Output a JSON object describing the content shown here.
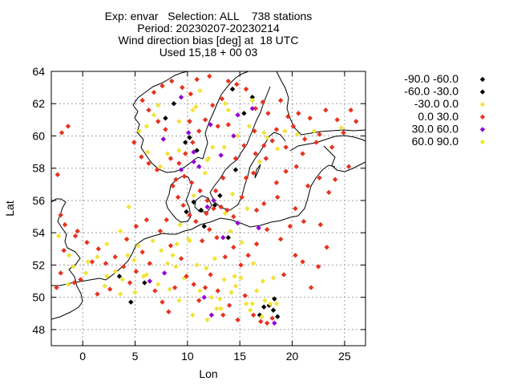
{
  "chart_data": {
    "type": "scatter",
    "title_lines": [
      "Exp: envar   Selection: ALL    738 stations",
      "Period: 20230207-20230214",
      "Wind direction bias [deg] at  18 UTC",
      "Used 15,18 + 00 03"
    ],
    "xlabel": "Lon",
    "ylabel": "Lat",
    "xlim": [
      -3,
      27
    ],
    "ylim": [
      47,
      64
    ],
    "xticks": [
      0,
      5,
      10,
      15,
      20,
      25
    ],
    "yticks": [
      48,
      50,
      52,
      54,
      56,
      58,
      60,
      62,
      64
    ],
    "grid": true,
    "legend_position": "right",
    "series": [
      {
        "name": "-90.0 -60.0",
        "color": "#000000",
        "points": [
          [
            8.7,
            62.0
          ],
          [
            10.2,
            59.9
          ],
          [
            13.1,
            56.3
          ],
          [
            14.6,
            57.9
          ],
          [
            16.2,
            62.4
          ],
          [
            3.5,
            51.3
          ],
          [
            4.6,
            49.7
          ],
          [
            18.2,
            49.2
          ],
          [
            18.6,
            48.8
          ],
          [
            17.3,
            49.4
          ],
          [
            11.3,
            55.4
          ],
          [
            9.8,
            59.6
          ],
          [
            14.3,
            62.9
          ],
          [
            7.9,
            61.1
          ],
          [
            10.6,
            55.9
          ]
        ]
      },
      {
        "name": "-60.0 -30.0",
        "color": "#000000",
        "points": [
          [
            10.9,
            59.1
          ],
          [
            12.6,
            55.7
          ],
          [
            18.3,
            49.9
          ],
          [
            17.8,
            49.5
          ],
          [
            5.9,
            50.9
          ],
          [
            15.4,
            61.4
          ],
          [
            9.9,
            55.3
          ],
          [
            13.9,
            53.7
          ],
          [
            11.6,
            54.4
          ],
          [
            16.9,
            48.9
          ]
        ]
      },
      {
        "name": "-30.0 0.0",
        "color": "#f2e33a",
        "points": [
          [
            -2.3,
            53.8
          ],
          [
            -0.9,
            51.9
          ],
          [
            1.4,
            52.5
          ],
          [
            3.8,
            51.1
          ],
          [
            4.9,
            52.3
          ],
          [
            6.1,
            51.4
          ],
          [
            7.2,
            50.8
          ],
          [
            8.1,
            52.1
          ],
          [
            9.0,
            53.3
          ],
          [
            10.1,
            53.6
          ],
          [
            11.2,
            50.4
          ],
          [
            12.3,
            50.0
          ],
          [
            13.1,
            49.9
          ],
          [
            14.2,
            50.3
          ],
          [
            15.1,
            51.2
          ],
          [
            16.0,
            49.2
          ],
          [
            17.1,
            48.8
          ],
          [
            17.9,
            49.6
          ],
          [
            15.6,
            49.6
          ],
          [
            14.6,
            50.7
          ],
          [
            13.5,
            51.1
          ],
          [
            12.6,
            52.4
          ],
          [
            11.8,
            51.8
          ],
          [
            10.9,
            52.0
          ],
          [
            9.7,
            51.2
          ],
          [
            8.9,
            51.9
          ],
          [
            7.5,
            52.9
          ],
          [
            6.7,
            53.5
          ],
          [
            5.3,
            53.2
          ],
          [
            4.3,
            52.6
          ],
          [
            3.1,
            51.6
          ],
          [
            2.3,
            51.3
          ],
          [
            -1.4,
            50.8
          ],
          [
            0.3,
            51.5
          ],
          [
            2.1,
            50.7
          ],
          [
            9.3,
            54.5
          ],
          [
            10.6,
            56.3
          ],
          [
            11.7,
            57.7
          ],
          [
            12.0,
            58.6
          ],
          [
            13.5,
            59.3
          ],
          [
            14.8,
            60.0
          ],
          [
            15.9,
            60.6
          ],
          [
            17.3,
            60.2
          ],
          [
            18.6,
            59.2
          ],
          [
            19.3,
            60.3
          ],
          [
            20.5,
            60.1
          ],
          [
            22.1,
            60.3
          ],
          [
            24.7,
            60.5
          ],
          [
            9.2,
            60.9
          ],
          [
            10.5,
            61.6
          ],
          [
            11.2,
            62.8
          ],
          [
            13.6,
            62.0
          ],
          [
            16.2,
            62.2
          ],
          [
            8.1,
            58.9
          ],
          [
            7.4,
            58.1
          ],
          [
            6.2,
            59.0
          ],
          [
            5.4,
            60.3
          ],
          [
            6.8,
            61.3
          ],
          [
            14.1,
            54.1
          ],
          [
            15.2,
            53.4
          ],
          [
            16.3,
            52.1
          ],
          [
            18.2,
            51.2
          ],
          [
            14.3,
            56.4
          ],
          [
            16.9,
            58.4
          ],
          [
            17.6,
            59.9
          ],
          [
            12.4,
            59.3
          ],
          [
            3.6,
            54.1
          ],
          [
            2.3,
            53.3
          ],
          [
            4.4,
            55.6
          ],
          [
            5.0,
            50.3
          ],
          [
            -1.3,
            52.6
          ],
          [
            0.5,
            52.2
          ],
          [
            8.3,
            50.5
          ],
          [
            9.2,
            49.8
          ],
          [
            10.5,
            48.9
          ],
          [
            11.9,
            48.6
          ],
          [
            13.2,
            49.3
          ],
          [
            16.6,
            50.4
          ],
          [
            17.2,
            51.0
          ],
          [
            18.5,
            49.6
          ]
        ]
      },
      {
        "name": "0.0 30.0",
        "color": "#e8321e",
        "points": [
          [
            -1.8,
            52.9
          ],
          [
            -0.7,
            53.8
          ],
          [
            0.9,
            52.2
          ],
          [
            1.4,
            50.2
          ],
          [
            2.6,
            50.5
          ],
          [
            3.1,
            52.5
          ],
          [
            3.9,
            51.9
          ],
          [
            4.5,
            50.9
          ],
          [
            5.1,
            51.6
          ],
          [
            5.7,
            52.8
          ],
          [
            6.4,
            52.1
          ],
          [
            6.9,
            50.4
          ],
          [
            7.6,
            49.7
          ],
          [
            8.2,
            49.1
          ],
          [
            8.8,
            50.6
          ],
          [
            9.4,
            52.4
          ],
          [
            9.9,
            51.3
          ],
          [
            10.6,
            50.8
          ],
          [
            11.1,
            49.8
          ],
          [
            11.7,
            50.6
          ],
          [
            12.2,
            51.4
          ],
          [
            12.9,
            50.4
          ],
          [
            13.4,
            48.9
          ],
          [
            14.0,
            49.5
          ],
          [
            14.8,
            48.6
          ],
          [
            15.5,
            50.1
          ],
          [
            16.3,
            48.9
          ],
          [
            17.0,
            48.5
          ],
          [
            17.6,
            48.4
          ],
          [
            18.1,
            48.7
          ],
          [
            19.2,
            51.4
          ],
          [
            20.3,
            52.6
          ],
          [
            21.0,
            52.2
          ],
          [
            21.8,
            50.6
          ],
          [
            22.5,
            51.9
          ],
          [
            23.3,
            53.1
          ],
          [
            22.7,
            54.5
          ],
          [
            21.1,
            54.7
          ],
          [
            20.3,
            55.5
          ],
          [
            21.5,
            56.9
          ],
          [
            22.6,
            57.4
          ],
          [
            23.5,
            56.5
          ],
          [
            24.1,
            57.3
          ],
          [
            25.4,
            58.1
          ],
          [
            23.8,
            59.3
          ],
          [
            22.3,
            59.6
          ],
          [
            21.0,
            58.9
          ],
          [
            20.4,
            58.1
          ],
          [
            19.4,
            57.8
          ],
          [
            18.6,
            56.2
          ],
          [
            19.8,
            54.4
          ],
          [
            18.9,
            53.6
          ],
          [
            17.6,
            54.2
          ],
          [
            16.6,
            53.3
          ],
          [
            15.8,
            52.6
          ],
          [
            15.1,
            52.0
          ],
          [
            14.4,
            53.1
          ],
          [
            13.6,
            52.5
          ],
          [
            12.8,
            53.7
          ],
          [
            12.1,
            54.2
          ],
          [
            11.4,
            53.5
          ],
          [
            10.8,
            54.7
          ],
          [
            10.2,
            55.1
          ],
          [
            9.6,
            55.7
          ],
          [
            9.1,
            56.2
          ],
          [
            8.6,
            56.9
          ],
          [
            8.9,
            57.3
          ],
          [
            9.7,
            57.5
          ],
          [
            10.4,
            57.1
          ],
          [
            11.2,
            56.6
          ],
          [
            11.9,
            56.0
          ],
          [
            12.5,
            55.5
          ],
          [
            13.2,
            55.6
          ],
          [
            13.8,
            55.4
          ],
          [
            14.4,
            55.0
          ],
          [
            15.2,
            56.2
          ],
          [
            15.6,
            57.4
          ],
          [
            16.3,
            57.7
          ],
          [
            16.5,
            58.9
          ],
          [
            17.3,
            59.4
          ],
          [
            18.1,
            59.7
          ],
          [
            18.5,
            60.4
          ],
          [
            17.7,
            61.4
          ],
          [
            17.2,
            62.1
          ],
          [
            16.5,
            61.7
          ],
          [
            15.6,
            62.9
          ],
          [
            14.7,
            63.2
          ],
          [
            13.9,
            63.4
          ],
          [
            13.3,
            62.3
          ],
          [
            12.4,
            61.9
          ],
          [
            11.7,
            61.0
          ],
          [
            11.1,
            60.3
          ],
          [
            10.5,
            59.6
          ],
          [
            9.8,
            58.9
          ],
          [
            9.2,
            58.3
          ],
          [
            8.4,
            58.6
          ],
          [
            7.9,
            60.4
          ],
          [
            7.2,
            60.9
          ],
          [
            6.3,
            61.6
          ],
          [
            5.7,
            62.2
          ],
          [
            6.8,
            62.7
          ],
          [
            7.6,
            63.1
          ],
          [
            8.5,
            63.4
          ],
          [
            9.5,
            63.0
          ],
          [
            10.3,
            62.6
          ],
          [
            10.9,
            63.5
          ],
          [
            12.1,
            63.7
          ],
          [
            4.9,
            59.6
          ],
          [
            5.6,
            58.7
          ],
          [
            6.3,
            58.3
          ],
          [
            7.1,
            57.9
          ],
          [
            -2.0,
            60.2
          ],
          [
            -1.4,
            60.6
          ],
          [
            -2.4,
            57.6
          ],
          [
            -2.1,
            55.1
          ],
          [
            -1.7,
            54.5
          ],
          [
            -0.5,
            54.1
          ],
          [
            0.4,
            53.4
          ],
          [
            1.5,
            53.0
          ],
          [
            2.2,
            52.1
          ],
          [
            -0.2,
            51.1
          ],
          [
            -2.1,
            51.5
          ],
          [
            -2.5,
            50.6
          ],
          [
            -0.8,
            50.9
          ],
          [
            19.4,
            59.3
          ],
          [
            20.1,
            60.6
          ],
          [
            21.7,
            61.1
          ],
          [
            23.2,
            61.6
          ],
          [
            24.9,
            60.2
          ],
          [
            26.1,
            60.9
          ],
          [
            22.6,
            60.1
          ],
          [
            21.2,
            59.8
          ],
          [
            19.6,
            61.2
          ],
          [
            18.9,
            62.2
          ],
          [
            20.6,
            61.4
          ],
          [
            24.3,
            61.0
          ],
          [
            25.6,
            61.6
          ],
          [
            4.2,
            53.6
          ],
          [
            5.1,
            54.4
          ],
          [
            6.1,
            54.8
          ],
          [
            7.4,
            54.1
          ],
          [
            8.0,
            54.8
          ],
          [
            8.4,
            53.2
          ],
          [
            11.8,
            55.2
          ],
          [
            12.7,
            56.6
          ],
          [
            13.4,
            57.4
          ],
          [
            14.6,
            58.6
          ],
          [
            15.4,
            59.4
          ],
          [
            16.4,
            60.3
          ],
          [
            17.5,
            58.6
          ],
          [
            18.5,
            57.1
          ],
          [
            16.6,
            55.4
          ],
          [
            17.3,
            55.8
          ],
          [
            13.9,
            60.7
          ],
          [
            12.9,
            60.6
          ],
          [
            10.2,
            60.9
          ]
        ]
      },
      {
        "name": "30.0 60.0",
        "color": "#9400d3",
        "points": [
          [
            9.4,
            62.4
          ],
          [
            10.1,
            60.2
          ],
          [
            7.7,
            59.8
          ],
          [
            12.2,
            60.7
          ],
          [
            14.8,
            61.3
          ],
          [
            16.2,
            61.7
          ],
          [
            11.1,
            58.1
          ],
          [
            10.6,
            59.0
          ],
          [
            6.4,
            51.0
          ],
          [
            7.8,
            51.5
          ],
          [
            13.4,
            53.7
          ],
          [
            14.8,
            54.6
          ],
          [
            16.8,
            54.3
          ],
          [
            18.3,
            48.4
          ],
          [
            12.3,
            48.9
          ],
          [
            11.6,
            50.0
          ],
          [
            13.2,
            58.8
          ],
          [
            9.4,
            57.9
          ],
          [
            10.6,
            58.4
          ],
          [
            14.4,
            60.0
          ],
          [
            11.9,
            55.6
          ],
          [
            12.5,
            56.0
          ]
        ]
      },
      {
        "name": "60.0 90.0",
        "color": "#f2e33a",
        "points": [
          [
            10.8,
            61.8
          ],
          [
            13.9,
            61.6
          ],
          [
            7.2,
            61.9
          ],
          [
            9.2,
            59.1
          ],
          [
            14.5,
            51.3
          ],
          [
            16.2,
            49.6
          ],
          [
            17.4,
            49.8
          ],
          [
            12.8,
            49.3
          ],
          [
            5.8,
            51.3
          ],
          [
            3.6,
            50.2
          ],
          [
            8.6,
            52.6
          ],
          [
            10.2,
            53.5
          ],
          [
            13.6,
            55.2
          ],
          [
            15.7,
            55.5
          ],
          [
            11.9,
            58.5
          ],
          [
            6.1,
            60.6
          ]
        ]
      }
    ]
  },
  "legend": {
    "entries": [
      "-90.0 -60.0",
      "-60.0 -30.0",
      "-30.0 0.0",
      "0.0 30.0",
      "30.0 60.0",
      "60.0 90.0"
    ],
    "colors": [
      "#000000",
      "#000000",
      "#f2e33a",
      "#e8321e",
      "#9400d3",
      "#f2e33a"
    ]
  }
}
